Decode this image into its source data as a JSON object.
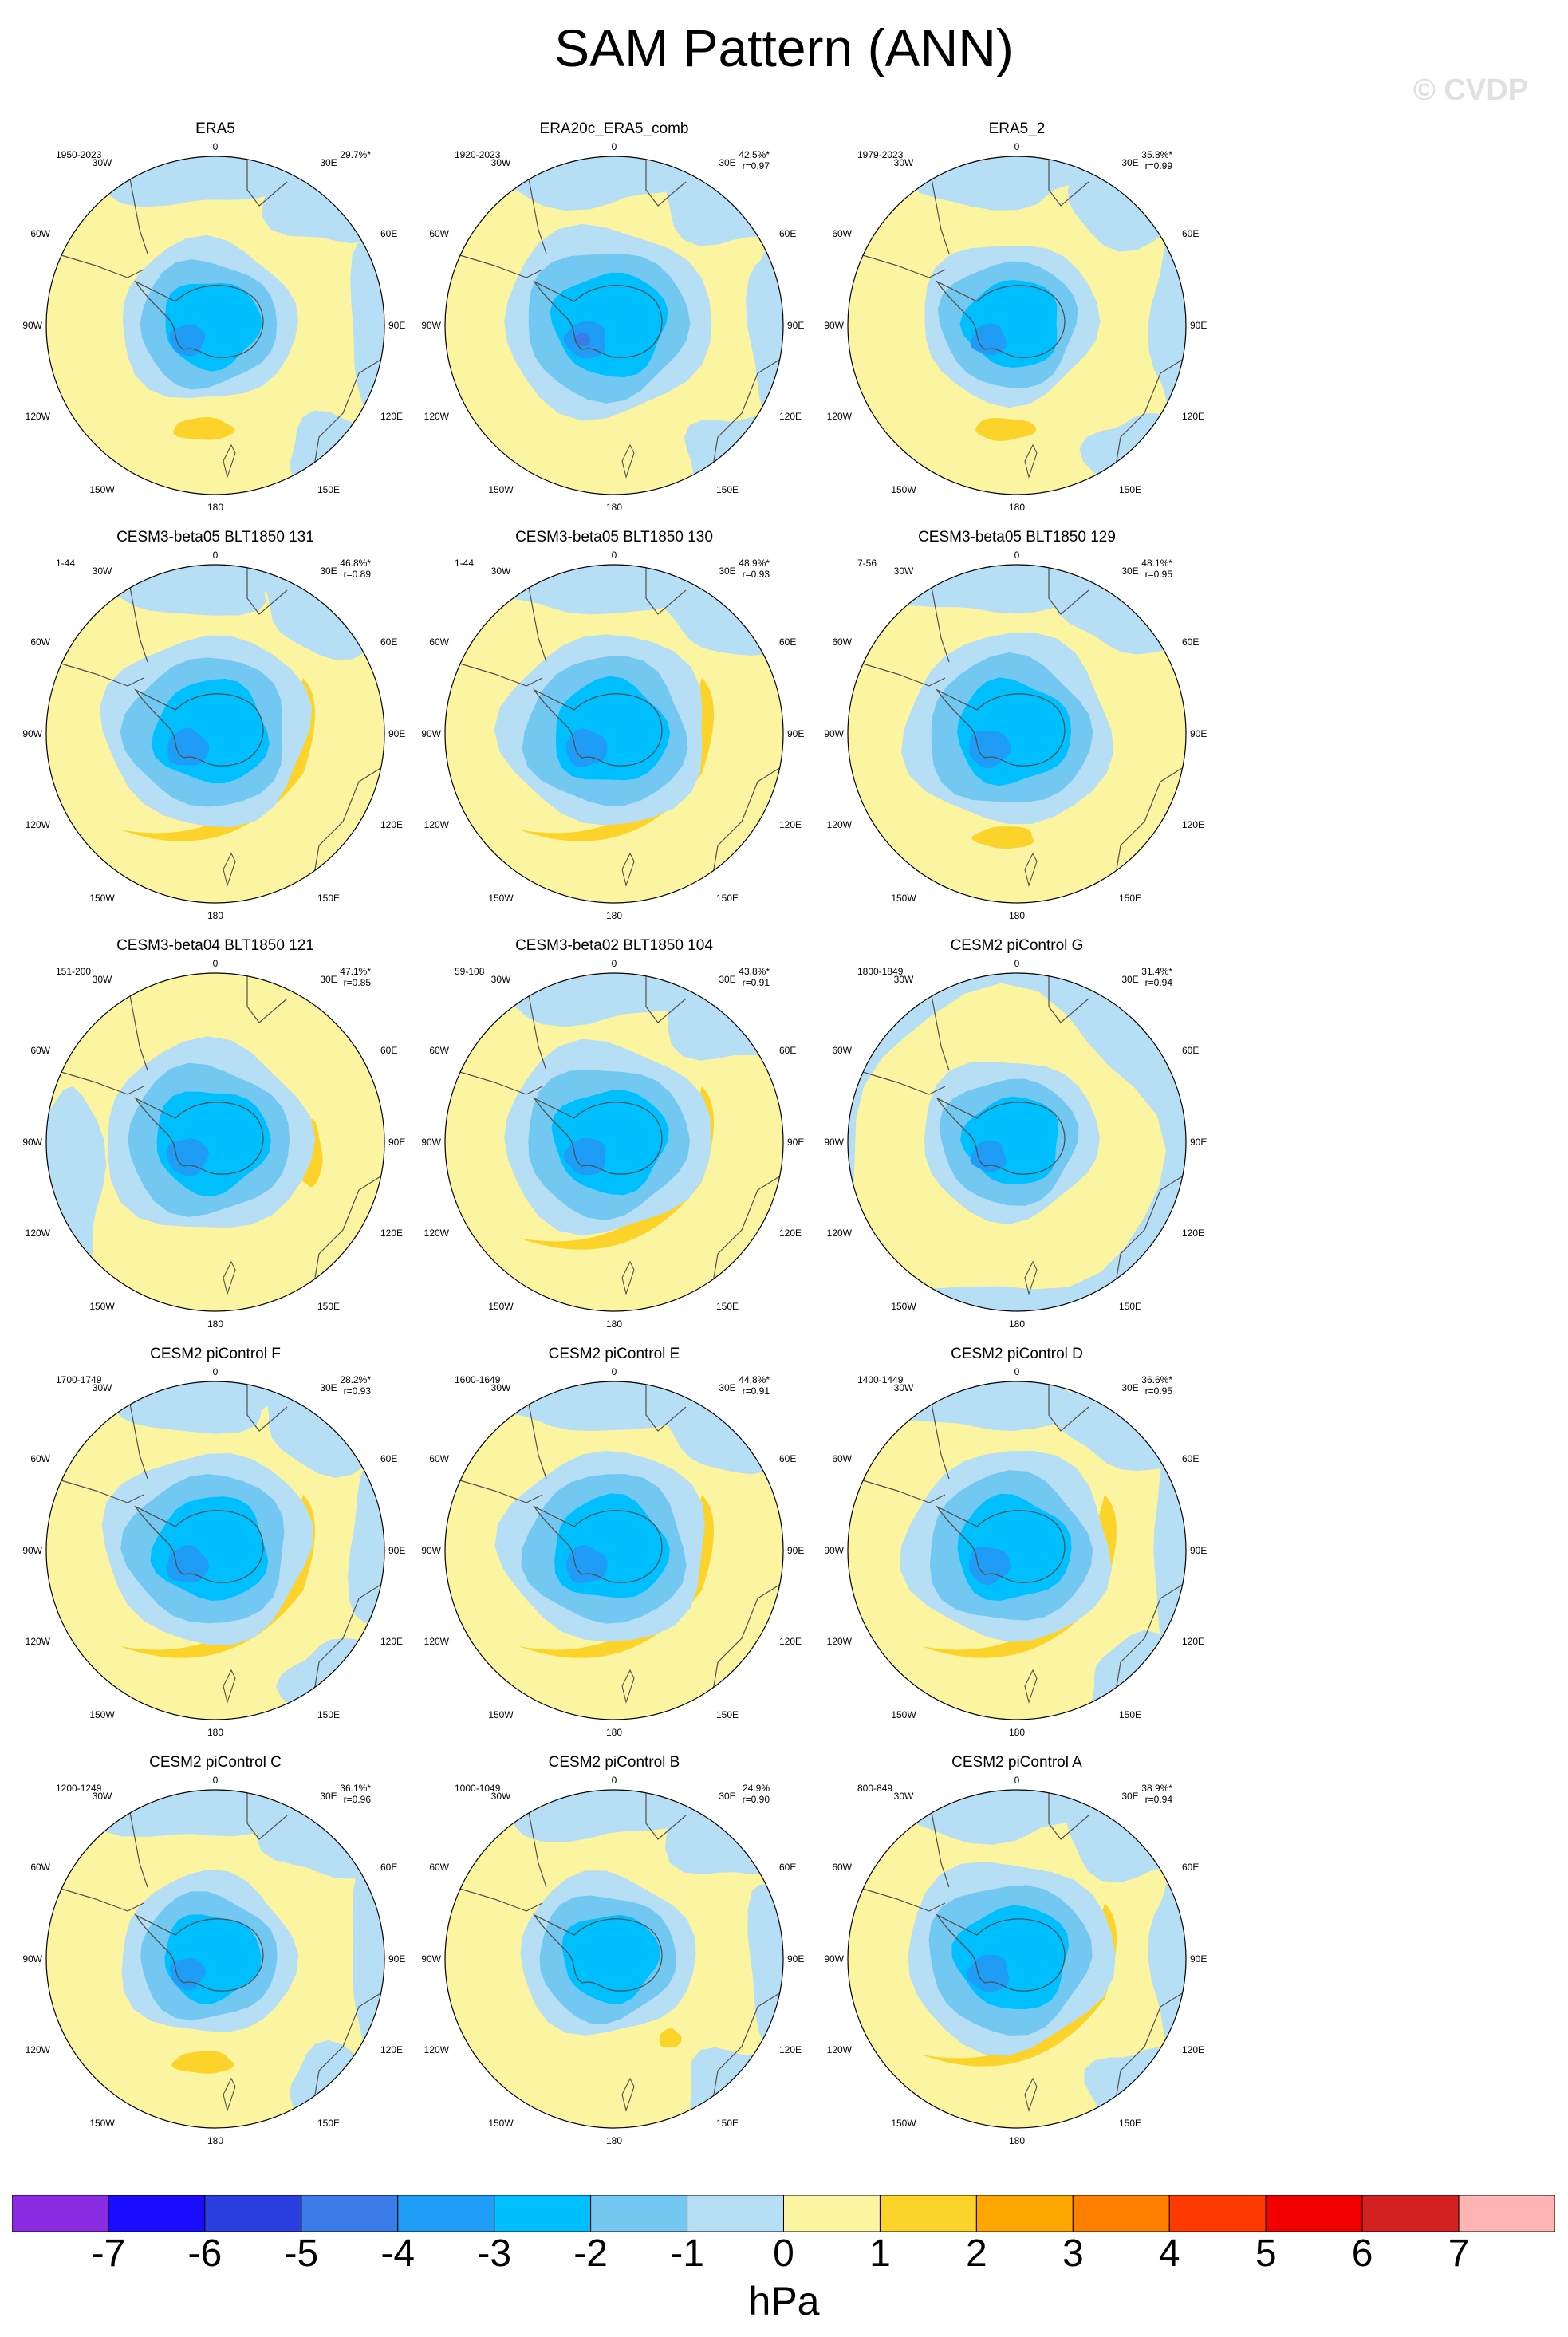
{
  "title": "SAM Pattern (ANN)",
  "copyright": "© CVDP",
  "units": "hPa",
  "colors": {
    "neg7": "#8a2be2",
    "neg6": "#1a0dff",
    "neg5": "#2b3fe0",
    "neg4": "#3a7be8",
    "neg3": "#1f9cf5",
    "neg2": "#00bfff",
    "neg1": "#73c8f2",
    "neg0": "#b6def4",
    "pos0": "#fbf4a0",
    "pos1": "#fcd32a",
    "pos2": "#fda600",
    "pos3": "#ff7f00",
    "pos4": "#ff3a00",
    "pos5": "#f20000",
    "pos6": "#d42020",
    "pos7": "#ffb4b4",
    "coast": "#505050"
  },
  "map_labels": {
    "top": "0",
    "top_left": "30W",
    "top_right": "30E",
    "upper_left": "60W",
    "upper_right": "60E",
    "left": "90W",
    "right": "90E",
    "lower_left": "120W",
    "lower_right": "120E",
    "bottom_left": "150W",
    "bottom_right": "150E",
    "bottom": "180"
  },
  "colorbar": {
    "labels": [
      "-7",
      "-6",
      "-5",
      "-4",
      "-3",
      "-2",
      "-1",
      "0",
      "1",
      "2",
      "3",
      "4",
      "5",
      "6",
      "7"
    ],
    "boxes": [
      "neg7",
      "neg6",
      "neg5",
      "neg4",
      "neg3",
      "neg2",
      "neg1",
      "neg0",
      "pos0",
      "pos1",
      "pos2",
      "pos3",
      "pos4",
      "pos5",
      "pos6",
      "pos7"
    ]
  },
  "chart_data": {
    "type": "heatmap",
    "description_units": "hPa",
    "panels": [
      {
        "name": "ERA5",
        "period": "1950-2023",
        "pct": "29.7%*",
        "r": "",
        "ring": "light",
        "core": 2,
        "lobe": "small",
        "bluebelt": "ne"
      },
      {
        "name": "ERA20c_ERA5_comb",
        "period": "1920-2023",
        "pct": "42.5%*",
        "r": "r=0.97",
        "ring": "wide",
        "core": 3,
        "lobe": "none",
        "bluebelt": "ne"
      },
      {
        "name": "ERA5_2",
        "period": "1979-2023",
        "pct": "35.8%*",
        "r": "r=0.99",
        "ring": "light",
        "core": 2,
        "lobe": "small",
        "bluebelt": "ne"
      },
      {
        "name": "CESM3-beta05 BLT1850 131",
        "period": "1-44",
        "pct": "46.8%*",
        "r": "r=0.89",
        "ring": "wide",
        "core": 2,
        "lobe": "arc",
        "bluebelt": "small"
      },
      {
        "name": "CESM3-beta05 BLT1850 130",
        "period": "1-44",
        "pct": "48.9%*",
        "r": "r=0.93",
        "ring": "wide",
        "core": 2,
        "lobe": "arc",
        "bluebelt": "small"
      },
      {
        "name": "CESM3-beta05 BLT1850 129",
        "period": "7-56",
        "pct": "48.1%*",
        "r": "r=0.95",
        "ring": "wide",
        "core": 2,
        "lobe": "small",
        "bluebelt": "small"
      },
      {
        "name": "CESM3-beta04 BLT1850 121",
        "period": "151-200",
        "pct": "47.1%*",
        "r": "r=0.85",
        "ring": "wide",
        "core": 2,
        "lobe": "east",
        "bluebelt": "west"
      },
      {
        "name": "CESM3-beta02 BLT1850 104",
        "period": "59-108",
        "pct": "43.8%*",
        "r": "r=0.91",
        "ring": "wide",
        "core": 2,
        "lobe": "arc",
        "bluebelt": "small"
      },
      {
        "name": "CESM2 piControl G",
        "period": "1800-1849",
        "pct": "31.4%*",
        "r": "r=0.94",
        "ring": "light",
        "core": 2,
        "lobe": "none",
        "bluebelt": "ring"
      },
      {
        "name": "CESM2 piControl F",
        "period": "1700-1749",
        "pct": "28.2%*",
        "r": "r=0.93",
        "ring": "wide",
        "core": 2,
        "lobe": "arc",
        "bluebelt": "ne"
      },
      {
        "name": "CESM2 piControl E",
        "period": "1600-1649",
        "pct": "44.8%*",
        "r": "r=0.91",
        "ring": "wide",
        "core": 2,
        "lobe": "arc",
        "bluebelt": "small"
      },
      {
        "name": "CESM2 piControl D",
        "period": "1400-1449",
        "pct": "36.6%*",
        "r": "r=0.95",
        "ring": "wide",
        "core": 2,
        "lobe": "arc",
        "bluebelt": "ne"
      },
      {
        "name": "CESM2 piControl C",
        "period": "1200-1249",
        "pct": "36.1%*",
        "r": "r=0.96",
        "ring": "light",
        "core": 2,
        "lobe": "small",
        "bluebelt": "ne"
      },
      {
        "name": "CESM2 piControl B",
        "period": "1000-1049",
        "pct": "24.9%",
        "r": "r=0.90",
        "ring": "light",
        "core": 1,
        "lobe": "tiny",
        "bluebelt": "ne"
      },
      {
        "name": "CESM2 piControl A",
        "period": "800-849",
        "pct": "38.9%*",
        "r": "r=0.94",
        "ring": "wide",
        "core": 2,
        "lobe": "arc",
        "bluebelt": "ne"
      }
    ],
    "colorbar_range": [
      -7,
      7
    ],
    "colorbar_step": 1
  }
}
